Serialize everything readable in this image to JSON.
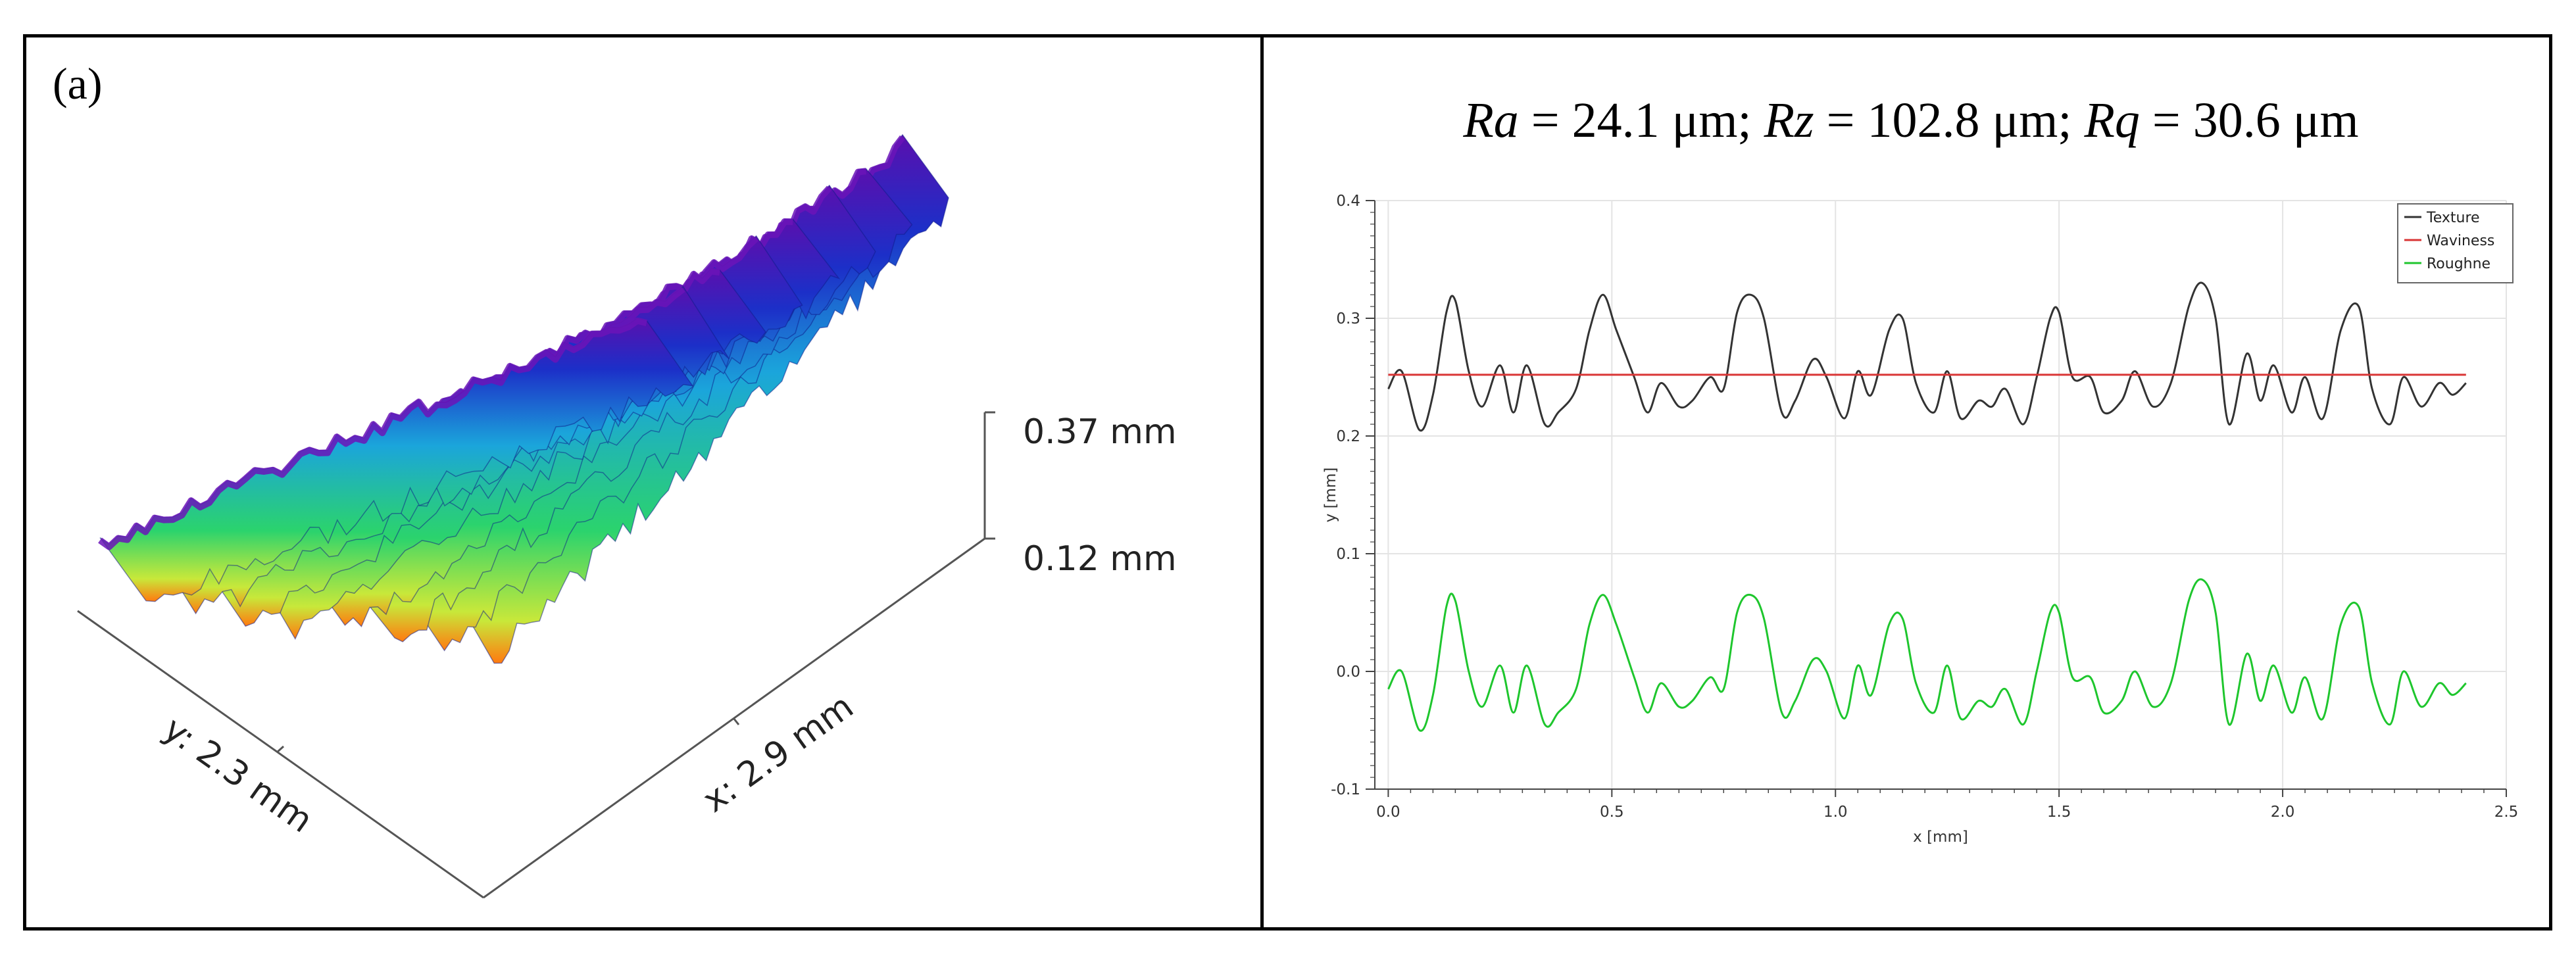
{
  "figure": {
    "panel_label": "(a)"
  },
  "surface_3d": {
    "x_label": "x: 2.9 mm",
    "y_label": "y: 2.3 mm",
    "z_max_label": "0.37 mm",
    "z_min_label": "0.12 mm",
    "ridge_count": 8,
    "colors": {
      "high": "#6a0dad",
      "mid_high": "#1e3fd0",
      "mid": "#1aa7d8",
      "low": "#2fd36b",
      "lowest": "#ff6a00"
    }
  },
  "title": {
    "ra_symbol": "Ra",
    "ra_text": " = 24.1 μm; ",
    "rz_symbol": "Rz",
    "rz_text": " = 102.8 μm; ",
    "rq_symbol": "Rq",
    "rq_text": " = 30.6 μm"
  },
  "chart_data": {
    "type": "line",
    "title": "Ra = 24.1 μm; Rz = 102.8 μm; Rq = 30.6 μm",
    "xlabel": "x [mm]",
    "ylabel": "y [mm]",
    "xlim": [
      -0.03,
      2.5
    ],
    "ylim": [
      -0.1,
      0.4
    ],
    "xticks": [
      0.0,
      0.5,
      1.0,
      1.5,
      2.0,
      2.5
    ],
    "xtick_labels": [
      "0.0",
      "0.5",
      "1.0",
      "1.5",
      "2.0",
      "2.5"
    ],
    "yticks": [
      -0.1,
      0.0,
      0.1,
      0.2,
      0.3,
      0.4
    ],
    "ytick_labels": [
      "-0.1",
      "0.0",
      "0.1",
      "0.2",
      "0.3",
      "0.4"
    ],
    "grid": true,
    "legend_position": "top-right",
    "series": [
      {
        "name": "Texture",
        "color": "#333333",
        "x": [
          0.0,
          0.03,
          0.07,
          0.1,
          0.13,
          0.15,
          0.18,
          0.21,
          0.25,
          0.28,
          0.31,
          0.35,
          0.38,
          0.42,
          0.45,
          0.48,
          0.51,
          0.55,
          0.58,
          0.61,
          0.65,
          0.68,
          0.72,
          0.75,
          0.78,
          0.81,
          0.84,
          0.88,
          0.91,
          0.95,
          0.98,
          1.02,
          1.05,
          1.08,
          1.12,
          1.15,
          1.18,
          1.22,
          1.25,
          1.28,
          1.32,
          1.35,
          1.38,
          1.42,
          1.45,
          1.48,
          1.5,
          1.53,
          1.57,
          1.6,
          1.64,
          1.67,
          1.71,
          1.75,
          1.79,
          1.82,
          1.85,
          1.88,
          1.92,
          1.95,
          1.98,
          2.02,
          2.05,
          2.09,
          2.13,
          2.17,
          2.2,
          2.24,
          2.27,
          2.31,
          2.35,
          2.38,
          2.41
        ],
        "y": [
          0.24,
          0.255,
          0.205,
          0.235,
          0.305,
          0.315,
          0.255,
          0.225,
          0.26,
          0.22,
          0.26,
          0.21,
          0.22,
          0.24,
          0.29,
          0.32,
          0.29,
          0.25,
          0.22,
          0.245,
          0.225,
          0.23,
          0.25,
          0.24,
          0.305,
          0.32,
          0.3,
          0.22,
          0.23,
          0.265,
          0.25,
          0.215,
          0.255,
          0.235,
          0.29,
          0.3,
          0.245,
          0.22,
          0.255,
          0.215,
          0.23,
          0.225,
          0.24,
          0.21,
          0.25,
          0.3,
          0.305,
          0.25,
          0.25,
          0.22,
          0.23,
          0.255,
          0.225,
          0.245,
          0.31,
          0.33,
          0.3,
          0.21,
          0.27,
          0.23,
          0.26,
          0.22,
          0.25,
          0.215,
          0.29,
          0.31,
          0.24,
          0.21,
          0.25,
          0.225,
          0.245,
          0.235,
          0.245
        ]
      },
      {
        "name": "Waviness",
        "color": "#d93535",
        "x": [
          0.0,
          2.41
        ],
        "y": [
          0.252,
          0.252
        ]
      },
      {
        "name": "Roughne",
        "color": "#1ec62d",
        "x": [
          0.0,
          0.03,
          0.07,
          0.1,
          0.13,
          0.15,
          0.18,
          0.21,
          0.25,
          0.28,
          0.31,
          0.35,
          0.38,
          0.42,
          0.45,
          0.48,
          0.51,
          0.55,
          0.58,
          0.61,
          0.65,
          0.68,
          0.72,
          0.75,
          0.78,
          0.81,
          0.84,
          0.88,
          0.91,
          0.95,
          0.98,
          1.02,
          1.05,
          1.08,
          1.12,
          1.15,
          1.18,
          1.22,
          1.25,
          1.28,
          1.32,
          1.35,
          1.38,
          1.42,
          1.45,
          1.48,
          1.5,
          1.53,
          1.57,
          1.6,
          1.64,
          1.67,
          1.71,
          1.75,
          1.79,
          1.82,
          1.85,
          1.88,
          1.92,
          1.95,
          1.98,
          2.02,
          2.05,
          2.09,
          2.13,
          2.17,
          2.2,
          2.24,
          2.27,
          2.31,
          2.35,
          2.38,
          2.41
        ],
        "y": [
          -0.015,
          0.0,
          -0.05,
          -0.02,
          0.055,
          0.06,
          0.0,
          -0.03,
          0.005,
          -0.035,
          0.005,
          -0.045,
          -0.035,
          -0.015,
          0.04,
          0.065,
          0.04,
          -0.005,
          -0.035,
          -0.01,
          -0.03,
          -0.025,
          -0.005,
          -0.015,
          0.05,
          0.065,
          0.045,
          -0.035,
          -0.025,
          0.01,
          0.0,
          -0.04,
          0.005,
          -0.02,
          0.04,
          0.045,
          -0.01,
          -0.035,
          0.005,
          -0.04,
          -0.025,
          -0.03,
          -0.015,
          -0.045,
          0.0,
          0.05,
          0.05,
          -0.005,
          -0.005,
          -0.035,
          -0.025,
          0.0,
          -0.03,
          -0.01,
          0.06,
          0.078,
          0.05,
          -0.045,
          0.015,
          -0.025,
          0.005,
          -0.035,
          -0.005,
          -0.04,
          0.04,
          0.055,
          -0.01,
          -0.045,
          0.0,
          -0.03,
          -0.01,
          -0.02,
          -0.01
        ]
      }
    ]
  }
}
